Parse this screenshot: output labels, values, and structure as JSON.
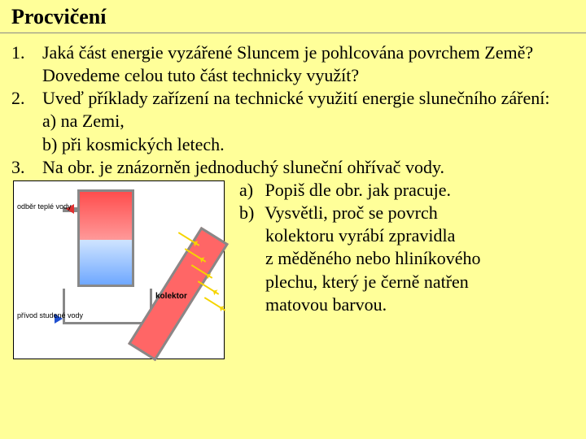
{
  "title": "Procvičení",
  "items": [
    {
      "num": "1.",
      "lines": [
        "Jaká část energie vyzářené Sluncem je pohlcována povrchem Země?",
        "Dovedeme celou tuto část technicky využít?"
      ]
    },
    {
      "num": "2.",
      "lines": [
        "Uveď příklady zařízení na technické využití energie slunečního záření:",
        "a) na Zemi,",
        "b) při kosmických letech."
      ]
    },
    {
      "num": "3.",
      "lines": [
        "Na obr. je znázorněn jednoduchý sluneční ohřívač vody."
      ]
    }
  ],
  "figure": {
    "label_hot": "odběr teplé vody",
    "label_cold": "přívod studené vody",
    "label_collector": "kolektor",
    "colors": {
      "hot": "#ff4d4d",
      "cold": "#6fa8ff",
      "ray": "#f5d400",
      "frame": "#888888",
      "panel": "#ff6666"
    }
  },
  "right": {
    "a_label": "a)",
    "a_text": "Popiš dle obr. jak pracuje.",
    "b_label": "b)",
    "b_lines": [
      "Vysvětli, proč se povrch",
      "kolektoru vyrábí zpravidla",
      "z měděného nebo hliníkového",
      "plechu, který je černě natřen",
      "matovou barvou."
    ]
  }
}
